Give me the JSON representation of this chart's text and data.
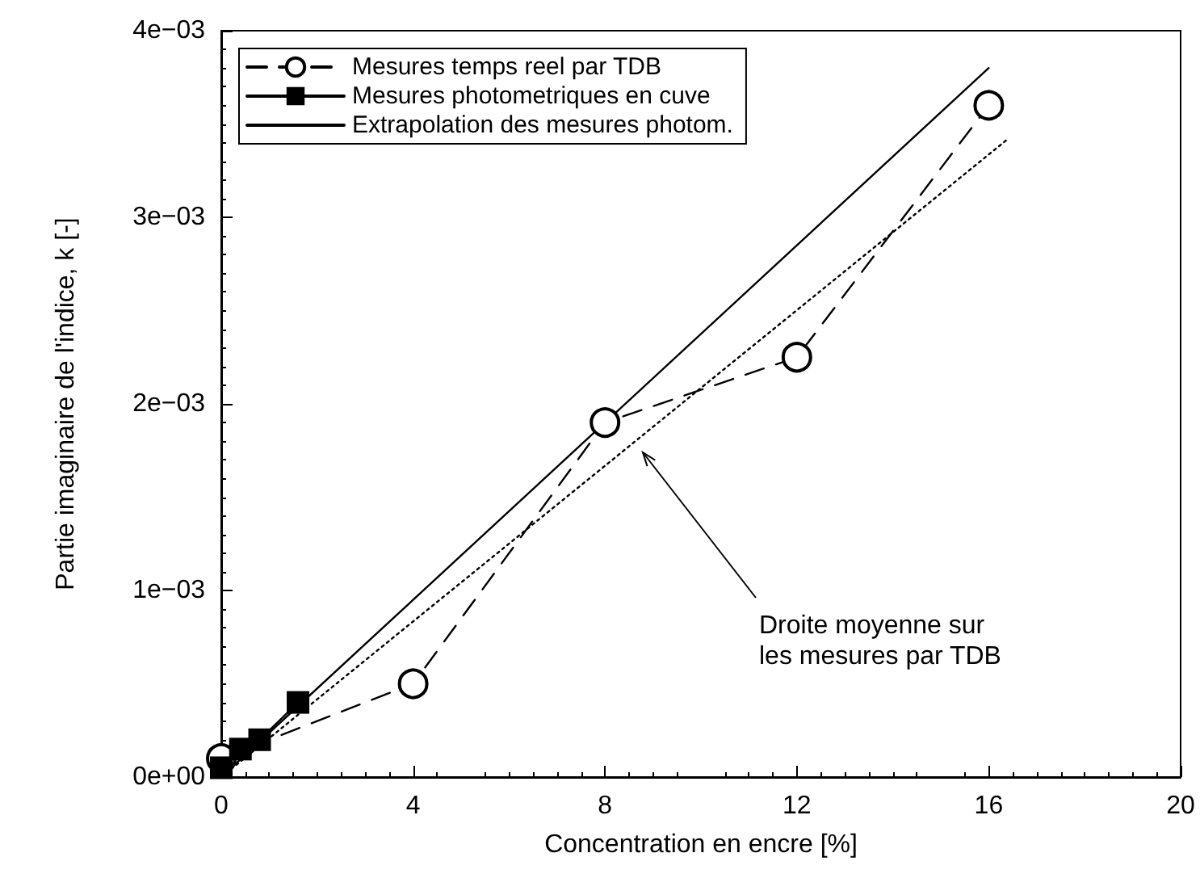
{
  "chart_data": {
    "type": "line",
    "xlabel": "Concentration en encre [%]",
    "ylabel": "Partie imaginaire de l'indice, k [-]",
    "xlim": [
      0,
      20
    ],
    "xticks": [
      0,
      4,
      8,
      12,
      16,
      20
    ],
    "ylim": [
      0,
      0.004
    ],
    "yticks": [
      {
        "value": 0,
        "label": "0e+00"
      },
      {
        "value": 0.001,
        "label": "1e−03"
      },
      {
        "value": 0.002,
        "label": "2e−03"
      },
      {
        "value": 0.003,
        "label": "3e−03"
      },
      {
        "value": 0.004,
        "label": "4e−03"
      }
    ],
    "grid": false,
    "legend": "top left",
    "series": [
      {
        "name": "Mesures temps reel par TDB",
        "color": "#000000",
        "marker": "circle",
        "line_style": "dashed",
        "x": [
          0,
          4,
          8,
          12,
          16
        ],
        "values": [
          0.0001,
          0.0005,
          0.0019,
          0.00225,
          0.0036
        ]
      },
      {
        "name": "Mesures photometriques en cuve",
        "color": "#000000",
        "marker": "square",
        "line_style": "solid",
        "x": [
          0,
          0.4,
          0.8,
          1.6
        ],
        "values": [
          5e-05,
          0.00015,
          0.0002,
          0.0004
        ]
      },
      {
        "name": "Extrapolation des mesures photom.",
        "color": "#000000",
        "marker": "none",
        "line_style": "solid",
        "x": [
          0,
          16
        ],
        "values": [
          0,
          0.0038
        ]
      },
      {
        "color": "#000000",
        "marker": "none",
        "line_style": "dotted",
        "x": [
          0,
          16.4
        ],
        "values": [
          0,
          0.00342
        ]
      }
    ],
    "annotations": [
      "Droite moyenne sur\nles mesures par TDB"
    ]
  }
}
